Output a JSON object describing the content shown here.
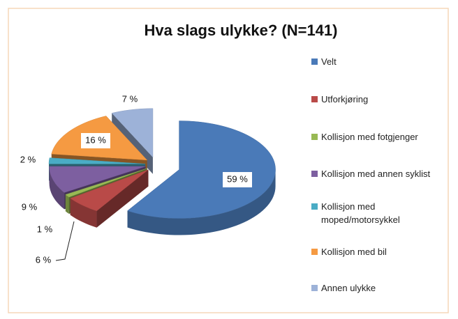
{
  "chart_data": {
    "type": "pie3d",
    "title": "Hva slags ulykke? (N=141)",
    "categories": [
      "Velt",
      "Utforkjøring",
      "Kollisjon med fotgjenger",
      "Kollisjon med annen syklist",
      "Kollisjon med moped/motorsykkel",
      "Kollisjon med bil",
      "Annen ulykke"
    ],
    "values": [
      59,
      6,
      1,
      9,
      2,
      16,
      7
    ],
    "value_labels": [
      "59 %",
      "6 %",
      "1 %",
      "9 %",
      "2 %",
      "16 %",
      "7 %"
    ],
    "colors": [
      "#4a7ab8",
      "#b94a48",
      "#98b954",
      "#7d5fa0",
      "#4aacc5",
      "#f59a42",
      "#9db2d8"
    ],
    "legend": "right"
  }
}
